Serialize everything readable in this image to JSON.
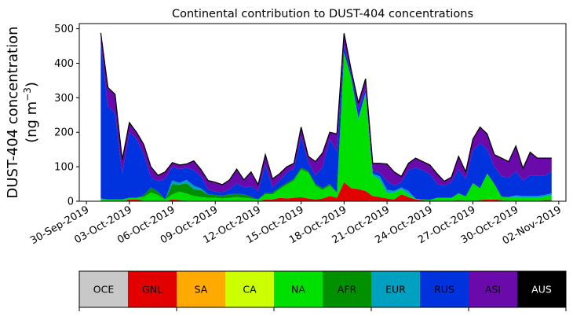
{
  "chart_data": {
    "type": "area",
    "stacked": true,
    "title": "Continental contribution to DUST-404 concentrations",
    "ylabel_line1": "DUST-404 concentration",
    "ylabel_line2": "(ng m",
    "ylabel_exp": "−3",
    "ylabel_close": ")",
    "ylim": [
      0,
      515
    ],
    "yticks": [
      0,
      100,
      200,
      300,
      400,
      500
    ],
    "xlim": [
      "2019-09-29T12:00",
      "2019-11-02T12:00"
    ],
    "xtick_dates": [
      "2019-09-30",
      "2019-10-03",
      "2019-10-06",
      "2019-10-09",
      "2019-10-12",
      "2019-10-15",
      "2019-10-18",
      "2019-10-21",
      "2019-10-24",
      "2019-10-27",
      "2019-10-30",
      "2019-11-02"
    ],
    "xtick_labels": [
      "30-Sep-2019",
      "03-Oct-2019",
      "06-Oct-2019",
      "09-Oct-2019",
      "12-Oct-2019",
      "15-Oct-2019",
      "18-Oct-2019",
      "21-Oct-2019",
      "24-Oct-2019",
      "27-Oct-2019",
      "30-Oct-2019",
      "02-Nov-2019"
    ],
    "x": [
      "2019-10-01",
      "2019-10-01T12:00",
      "2019-10-02",
      "2019-10-02T12:00",
      "2019-10-03",
      "2019-10-03T12:00",
      "2019-10-04",
      "2019-10-04T12:00",
      "2019-10-05",
      "2019-10-05T12:00",
      "2019-10-06",
      "2019-10-06T12:00",
      "2019-10-07",
      "2019-10-07T12:00",
      "2019-10-08",
      "2019-10-08T12:00",
      "2019-10-09",
      "2019-10-09T12:00",
      "2019-10-10",
      "2019-10-10T12:00",
      "2019-10-11",
      "2019-10-11T12:00",
      "2019-10-12",
      "2019-10-12T12:00",
      "2019-10-13",
      "2019-10-13T12:00",
      "2019-10-14",
      "2019-10-14T12:00",
      "2019-10-15",
      "2019-10-15T12:00",
      "2019-10-16",
      "2019-10-16T12:00",
      "2019-10-17",
      "2019-10-17T12:00",
      "2019-10-18",
      "2019-10-18T12:00",
      "2019-10-19",
      "2019-10-19T12:00",
      "2019-10-20",
      "2019-10-20T12:00",
      "2019-10-21",
      "2019-10-21T12:00",
      "2019-10-22",
      "2019-10-22T12:00",
      "2019-10-23",
      "2019-10-23T12:00",
      "2019-10-24",
      "2019-10-24T12:00",
      "2019-10-25",
      "2019-10-25T12:00",
      "2019-10-26",
      "2019-10-26T12:00",
      "2019-10-27",
      "2019-10-27T12:00",
      "2019-10-28",
      "2019-10-28T12:00",
      "2019-10-29",
      "2019-10-29T12:00",
      "2019-10-30",
      "2019-10-30T12:00",
      "2019-10-31",
      "2019-10-31T12:00",
      "2019-11-01",
      "2019-11-01T12:00"
    ],
    "total": [
      488,
      330,
      310,
      120,
      228,
      200,
      165,
      100,
      75,
      85,
      112,
      105,
      108,
      117,
      92,
      60,
      55,
      48,
      62,
      93,
      62,
      85,
      48,
      135,
      65,
      80,
      100,
      110,
      215,
      130,
      115,
      140,
      200,
      195,
      487,
      380,
      285,
      355,
      110,
      110,
      108,
      85,
      72,
      110,
      125,
      115,
      105,
      80,
      58,
      70,
      130,
      85,
      180,
      215,
      195,
      135,
      125,
      115,
      160,
      95,
      142,
      125,
      125,
      125
    ],
    "series": [
      {
        "name": "GNL",
        "color": "#e20000",
        "values": [
          0,
          0,
          0,
          0,
          5,
          5,
          2,
          0,
          0,
          0,
          5,
          3,
          2,
          0,
          0,
          0,
          0,
          0,
          0,
          0,
          0,
          0,
          0,
          5,
          5,
          10,
          8,
          10,
          12,
          8,
          5,
          8,
          15,
          10,
          55,
          38,
          35,
          30,
          15,
          12,
          8,
          5,
          20,
          12,
          5,
          3,
          2,
          2,
          2,
          2,
          3,
          2,
          2,
          3,
          5,
          5,
          3,
          2,
          2,
          2,
          2,
          2,
          3,
          3
        ]
      },
      {
        "name": "NA",
        "color": "#00e000",
        "values": [
          8,
          5,
          5,
          5,
          5,
          5,
          10,
          25,
          18,
          5,
          15,
          25,
          20,
          15,
          12,
          10,
          10,
          8,
          10,
          12,
          10,
          8,
          5,
          15,
          15,
          25,
          40,
          50,
          80,
          75,
          40,
          25,
          30,
          15,
          375,
          320,
          200,
          280,
          60,
          50,
          15,
          20,
          15,
          8,
          2,
          2,
          2,
          8,
          8,
          8,
          20,
          12,
          50,
          35,
          75,
          45,
          10,
          10,
          10,
          8,
          8,
          8,
          10,
          15
        ]
      },
      {
        "name": "AFR",
        "color": "#008f00",
        "values": [
          0,
          0,
          0,
          0,
          0,
          0,
          5,
          15,
          10,
          0,
          30,
          20,
          30,
          20,
          20,
          10,
          8,
          8,
          10,
          10,
          10,
          5,
          0,
          5,
          5,
          5,
          5,
          5,
          5,
          5,
          5,
          5,
          5,
          0,
          0,
          0,
          0,
          0,
          0,
          0,
          0,
          0,
          0,
          0,
          0,
          0,
          0,
          0,
          0,
          0,
          0,
          0,
          0,
          0,
          0,
          0,
          0,
          0,
          0,
          0,
          0,
          0,
          0,
          0
        ]
      },
      {
        "name": "EUR",
        "color": "#00a0c0",
        "values": [
          0,
          0,
          0,
          0,
          0,
          0,
          0,
          0,
          0,
          0,
          10,
          5,
          10,
          10,
          5,
          0,
          0,
          0,
          0,
          0,
          0,
          0,
          0,
          0,
          0,
          0,
          0,
          0,
          0,
          0,
          0,
          0,
          0,
          0,
          0,
          0,
          5,
          5,
          5,
          10,
          10,
          5,
          5,
          10,
          0,
          0,
          0,
          0,
          0,
          0,
          0,
          0,
          0,
          0,
          0,
          0,
          0,
          0,
          5,
          5,
          5,
          5,
          5,
          5
        ]
      },
      {
        "name": "RUS",
        "color": "#0033dd",
        "values": [
          450,
          270,
          250,
          75,
          190,
          170,
          120,
          30,
          30,
          60,
          40,
          40,
          35,
          45,
          35,
          15,
          10,
          10,
          15,
          30,
          20,
          30,
          25,
          80,
          15,
          20,
          30,
          30,
          90,
          25,
          25,
          60,
          130,
          120,
          20,
          10,
          25,
          10,
          10,
          10,
          25,
          15,
          15,
          60,
          90,
          85,
          75,
          40,
          35,
          45,
          70,
          50,
          95,
          130,
          70,
          50,
          60,
          55,
          70,
          45,
          60,
          60,
          55,
          65
        ]
      },
      {
        "name": "ASI",
        "color": "#6a0aaa",
        "values": [
          30,
          55,
          55,
          40,
          28,
          20,
          28,
          30,
          17,
          20,
          12,
          12,
          11,
          27,
          20,
          25,
          27,
          22,
          27,
          41,
          22,
          42,
          18,
          30,
          25,
          20,
          17,
          15,
          28,
          17,
          40,
          42,
          20,
          50,
          37,
          12,
          20,
          30,
          20,
          28,
          50,
          40,
          17,
          20,
          28,
          25,
          26,
          30,
          13,
          15,
          37,
          21,
          33,
          47,
          45,
          35,
          52,
          48,
          73,
          35,
          67,
          50,
          52,
          37
        ]
      }
    ],
    "legend": [
      {
        "label": "OCE",
        "color": "#c8c8c8",
        "text_color": "#000000"
      },
      {
        "label": "GNL",
        "color": "#e20000",
        "text_color": "#000000"
      },
      {
        "label": "SA",
        "color": "#ffaa00",
        "text_color": "#000000"
      },
      {
        "label": "CA",
        "color": "#ccff00",
        "text_color": "#000000"
      },
      {
        "label": "NA",
        "color": "#00e000",
        "text_color": "#000000"
      },
      {
        "label": "AFR",
        "color": "#009000",
        "text_color": "#000000"
      },
      {
        "label": "EUR",
        "color": "#00a0c0",
        "text_color": "#000000"
      },
      {
        "label": "RUS",
        "color": "#0033dd",
        "text_color": "#000000"
      },
      {
        "label": "ASI",
        "color": "#6a0aaa",
        "text_color": "#000000"
      },
      {
        "label": "AUS",
        "color": "#000000",
        "text_color": "#ffffff"
      }
    ],
    "legend_placement": "bottom",
    "grid": false
  }
}
